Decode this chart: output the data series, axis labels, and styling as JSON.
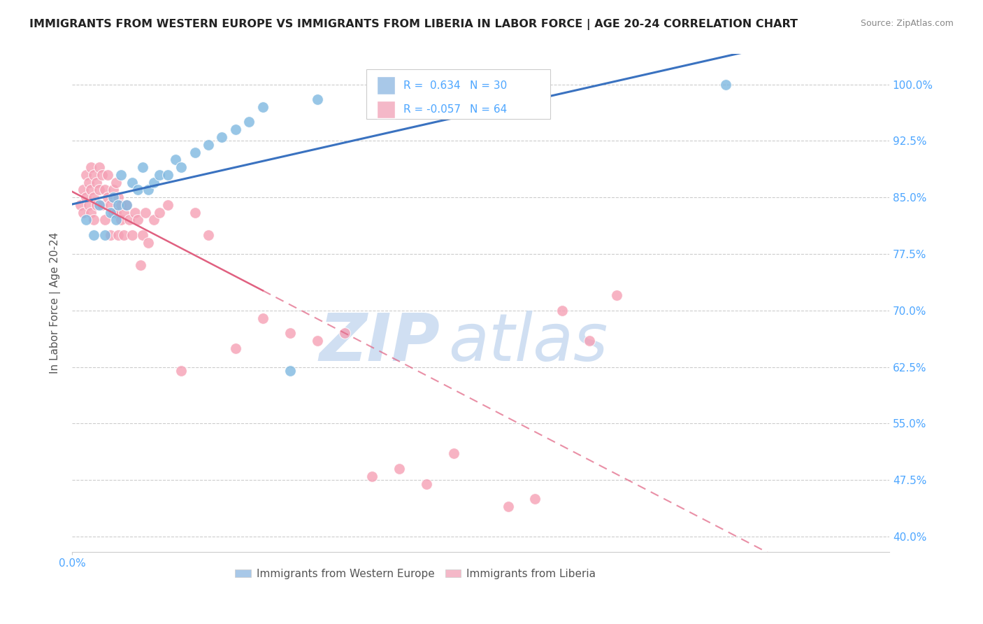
{
  "title": "IMMIGRANTS FROM WESTERN EUROPE VS IMMIGRANTS FROM LIBERIA IN LABOR FORCE | AGE 20-24 CORRELATION CHART",
  "source": "Source: ZipAtlas.com",
  "ylabel": "In Labor Force | Age 20-24",
  "xlim": [
    0.0,
    0.3
  ],
  "ylim": [
    0.38,
    1.04
  ],
  "yticks": [
    0.4,
    0.475,
    0.55,
    0.625,
    0.7,
    0.775,
    0.85,
    0.925,
    1.0
  ],
  "ytick_labels": [
    "40.0%",
    "47.5%",
    "55.0%",
    "62.5%",
    "70.0%",
    "77.5%",
    "85.0%",
    "92.5%",
    "100.0%"
  ],
  "R_blue": 0.634,
  "N_blue": 30,
  "R_pink": -0.057,
  "N_pink": 64,
  "blue_color": "#7fb8e0",
  "pink_color": "#f5a0b5",
  "blue_line_color": "#3a72c0",
  "pink_line_color": "#e06080",
  "background_color": "#ffffff",
  "grid_color": "#cccccc",
  "title_color": "#222222",
  "watermark_color": "#dce8f5",
  "legend_box_blue": "#a8c8e8",
  "legend_box_pink": "#f4b8c8",
  "blue_scatter_x": [
    0.005,
    0.008,
    0.01,
    0.012,
    0.014,
    0.015,
    0.016,
    0.017,
    0.018,
    0.02,
    0.022,
    0.024,
    0.026,
    0.028,
    0.03,
    0.032,
    0.035,
    0.038,
    0.04,
    0.045,
    0.05,
    0.055,
    0.06,
    0.065,
    0.07,
    0.08,
    0.09,
    0.11,
    0.16,
    0.24
  ],
  "blue_scatter_y": [
    0.82,
    0.8,
    0.84,
    0.8,
    0.83,
    0.85,
    0.82,
    0.84,
    0.88,
    0.84,
    0.87,
    0.86,
    0.89,
    0.86,
    0.87,
    0.88,
    0.88,
    0.9,
    0.89,
    0.91,
    0.92,
    0.93,
    0.94,
    0.95,
    0.97,
    0.62,
    0.98,
    0.97,
    0.99,
    1.0
  ],
  "pink_scatter_x": [
    0.003,
    0.004,
    0.004,
    0.005,
    0.005,
    0.006,
    0.006,
    0.007,
    0.007,
    0.007,
    0.008,
    0.008,
    0.008,
    0.009,
    0.009,
    0.01,
    0.01,
    0.011,
    0.011,
    0.012,
    0.012,
    0.013,
    0.013,
    0.014,
    0.014,
    0.015,
    0.015,
    0.016,
    0.016,
    0.017,
    0.017,
    0.018,
    0.018,
    0.019,
    0.019,
    0.02,
    0.021,
    0.022,
    0.023,
    0.024,
    0.025,
    0.026,
    0.027,
    0.028,
    0.03,
    0.032,
    0.035,
    0.04,
    0.045,
    0.05,
    0.06,
    0.07,
    0.08,
    0.09,
    0.1,
    0.11,
    0.12,
    0.13,
    0.14,
    0.16,
    0.17,
    0.18,
    0.19,
    0.2
  ],
  "pink_scatter_y": [
    0.84,
    0.86,
    0.83,
    0.88,
    0.85,
    0.87,
    0.84,
    0.89,
    0.86,
    0.83,
    0.88,
    0.85,
    0.82,
    0.87,
    0.84,
    0.89,
    0.86,
    0.88,
    0.84,
    0.86,
    0.82,
    0.85,
    0.88,
    0.84,
    0.8,
    0.86,
    0.83,
    0.87,
    0.83,
    0.85,
    0.8,
    0.84,
    0.82,
    0.83,
    0.8,
    0.84,
    0.82,
    0.8,
    0.83,
    0.82,
    0.76,
    0.8,
    0.83,
    0.79,
    0.82,
    0.83,
    0.84,
    0.62,
    0.83,
    0.8,
    0.65,
    0.69,
    0.67,
    0.66,
    0.67,
    0.48,
    0.49,
    0.47,
    0.51,
    0.44,
    0.45,
    0.7,
    0.66,
    0.72
  ],
  "legend_label_blue": "Immigrants from Western Europe",
  "legend_label_pink": "Immigrants from Liberia",
  "right_ytick_color": "#4da6ff",
  "title_fontsize": 11.5,
  "source_fontsize": 9
}
